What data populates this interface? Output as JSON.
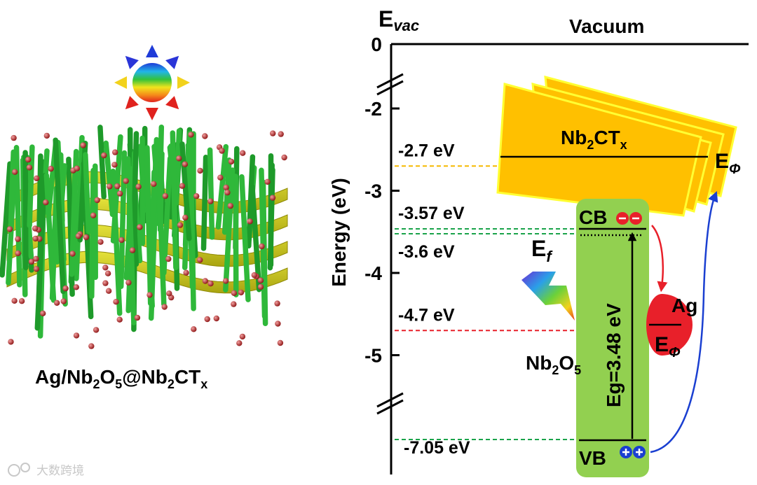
{
  "composite": {
    "label_main": "Ag/Nb",
    "label_sub1": "2",
    "label_mid": "O",
    "label_sub2": "5",
    "label_at": "@Nb",
    "label_sub3": "2",
    "label_ct": "CT",
    "label_sub4": "x"
  },
  "diagram": {
    "evac_main": "E",
    "evac_sub": "vac",
    "vacuum_label": "Vacuum",
    "y_axis_label": "Energy (eV)",
    "ticks": [
      {
        "value": 0,
        "label": "0"
      },
      {
        "value": -2,
        "label": "-2"
      },
      {
        "value": -3,
        "label": "-3"
      },
      {
        "value": -4,
        "label": "-4"
      },
      {
        "value": -5,
        "label": "-5"
      }
    ],
    "levels": [
      {
        "value": -2.7,
        "label": "-2.7 eV",
        "color": "#f5b800"
      },
      {
        "value": -3.57,
        "label": "-3.57 eV",
        "color": "#1aa34a"
      },
      {
        "value": -3.6,
        "label": "-3.6 eV",
        "color": "#1aa34a"
      },
      {
        "value": -4.7,
        "label": "-4.7 eV",
        "color": "#e8202a"
      },
      {
        "value": -7.05,
        "label": "-7.05 eV",
        "color": "#1aa34a"
      }
    ],
    "nb2ctx": {
      "main": "Nb",
      "sub1": "2",
      "mid": "CT",
      "sub2": "x",
      "color": "#ffc000",
      "edge": "#ffff33"
    },
    "ephi_main": "E",
    "ephi_sub": "Φ",
    "cb_label": "CB",
    "vb_label": "VB",
    "ef_main": "E",
    "ef_sub": "f",
    "eg_label": "Eg=3.48 eV",
    "nb2o5": {
      "main": "Nb",
      "sub1": "2",
      "mid": "O",
      "sub2": "5",
      "color": "#92d050"
    },
    "ag_label": "Ag",
    "ag_ephi_main": "E",
    "ag_ephi_sub": "Φ",
    "electron_color": "#e8202a",
    "hole_color": "#1a3fd1"
  },
  "watermark": "大数跨境"
}
